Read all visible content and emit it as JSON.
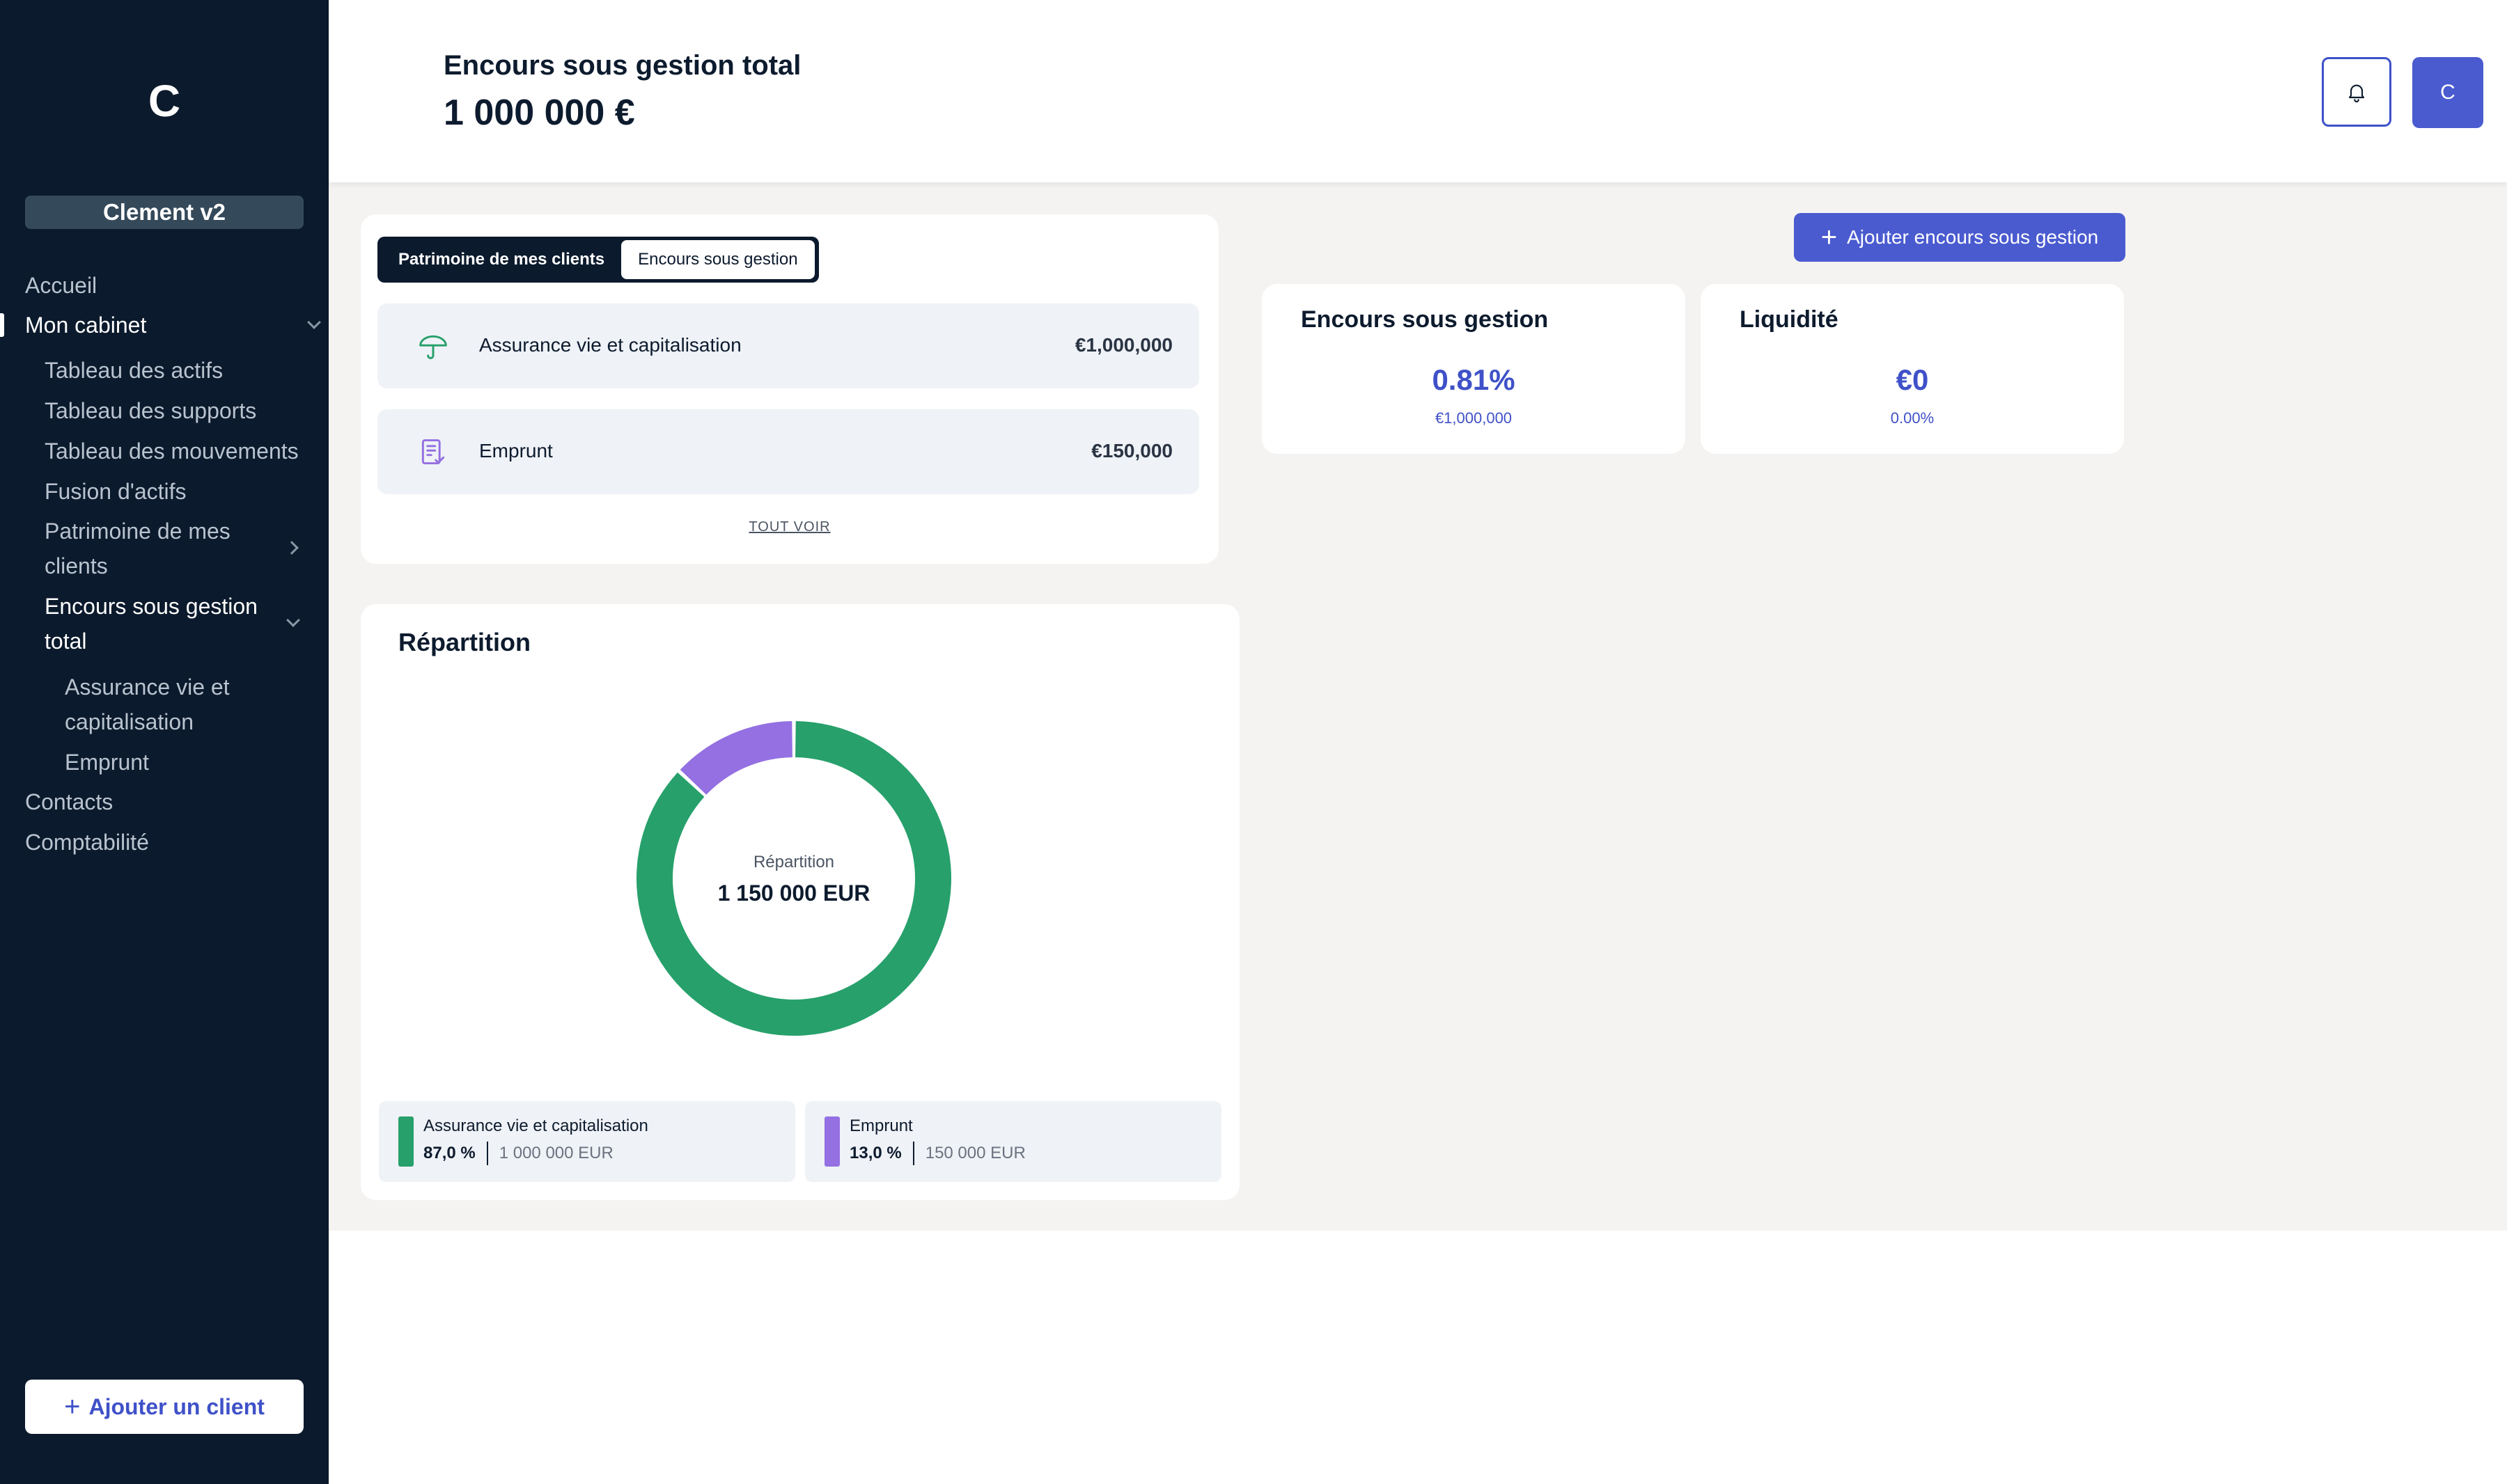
{
  "sidebar": {
    "logo": "C",
    "workspace": "Clement v2",
    "nav": {
      "home": "Accueil",
      "my_firm": "Mon cabinet",
      "assets_table": "Tableau des actifs",
      "supports_table": "Tableau des supports",
      "movements_table": "Tableau des mouvements",
      "asset_merge": "Fusion d'actifs",
      "client_wealth": "Patrimoine de mes clients",
      "total_aum": "Encours sous gestion total",
      "life_insurance": "Assurance vie et capitalisation",
      "loan": "Emprunt",
      "contacts": "Contacts",
      "accounting": "Comptabilité"
    },
    "add_client": "Ajouter un client"
  },
  "header": {
    "title": "Encours sous gestion total",
    "amount": "1 000 000 €",
    "avatar": "C"
  },
  "assets_card": {
    "tabs": [
      "Patrimoine de mes clients",
      "Encours sous gestion"
    ],
    "rows": [
      {
        "label": "Assurance vie et capitalisation",
        "value": "€1,000,000",
        "icon": "umbrella-icon"
      },
      {
        "label": "Emprunt",
        "value": "€150,000",
        "icon": "document-check-icon"
      }
    ],
    "see_all": "TOUT VOIR"
  },
  "add_aum": "Ajouter encours sous gestion",
  "stats": {
    "aum": {
      "title": "Encours sous gestion",
      "big": "0.81%",
      "small": "€1,000,000"
    },
    "liquidity": {
      "title": "Liquidité",
      "big": "€0",
      "small": "0.00%"
    }
  },
  "repartition": {
    "title": "Répartition",
    "center_label": "Répartition",
    "center_value": "1 150 000 EUR",
    "legend": [
      {
        "name": "Assurance vie et capitalisation",
        "pct": "87,0 %",
        "amount": "1 000 000 EUR"
      },
      {
        "name": "Emprunt",
        "pct": "13,0 %",
        "amount": "150 000 EUR"
      }
    ]
  },
  "chart_data": {
    "type": "pie",
    "categories": [
      "Assurance vie et capitalisation",
      "Emprunt"
    ],
    "values": [
      1000000,
      150000
    ],
    "colors": [
      "#27a06b",
      "#9470e2"
    ],
    "title": "Répartition"
  }
}
